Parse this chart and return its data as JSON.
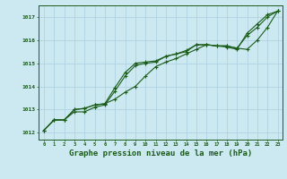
{
  "background_color": "#cce8f0",
  "grid_color": "#aacfdf",
  "line_color": "#1a5c1a",
  "xlabel": "Graphe pression niveau de la mer (hPa)",
  "xlabel_fontsize": 6.5,
  "ylabel_ticks": [
    1012,
    1013,
    1014,
    1015,
    1016,
    1017
  ],
  "xlim": [
    -0.5,
    23.5
  ],
  "ylim": [
    1011.7,
    1017.5
  ],
  "x": [
    0,
    1,
    2,
    3,
    4,
    5,
    6,
    7,
    8,
    9,
    10,
    11,
    12,
    13,
    14,
    15,
    16,
    17,
    18,
    19,
    20,
    21,
    22,
    23
  ],
  "series1": [
    1012.1,
    1012.55,
    1012.55,
    1012.9,
    1012.9,
    1013.1,
    1013.2,
    1013.8,
    1014.45,
    1014.9,
    1015.0,
    1015.05,
    1015.3,
    1015.4,
    1015.5,
    1015.8,
    1015.8,
    1015.75,
    1015.7,
    1015.6,
    1016.3,
    1016.7,
    1017.1,
    1017.25
  ],
  "series2": [
    1012.1,
    1012.55,
    1012.55,
    1013.0,
    1013.05,
    1013.2,
    1013.25,
    1013.95,
    1014.6,
    1015.0,
    1015.05,
    1015.1,
    1015.3,
    1015.4,
    1015.55,
    1015.8,
    1015.8,
    1015.75,
    1015.75,
    1015.65,
    1016.2,
    1016.55,
    1017.0,
    1017.25
  ],
  "series3": [
    1012.1,
    1012.55,
    1012.55,
    1013.0,
    1013.05,
    1013.2,
    1013.25,
    1013.45,
    1013.75,
    1014.0,
    1014.45,
    1014.85,
    1015.05,
    1015.2,
    1015.4,
    1015.6,
    1015.8,
    1015.75,
    1015.75,
    1015.65,
    1015.6,
    1016.0,
    1016.55,
    1017.25
  ]
}
